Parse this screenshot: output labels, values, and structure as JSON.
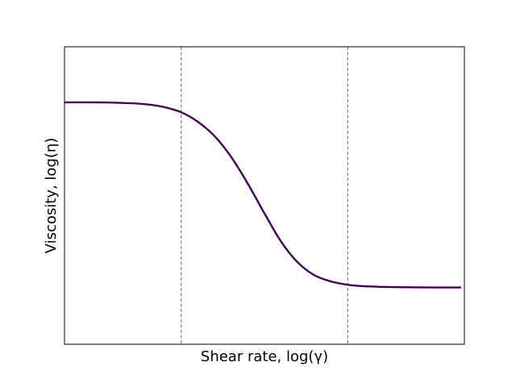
{
  "chart_data": {
    "type": "line",
    "title": "",
    "xlabel": "Shear rate, log(γ)",
    "ylabel": "Viscosity, log(η)",
    "xlim": [
      -3,
      3
    ],
    "ylim": [
      0,
      1
    ],
    "x_ticks": [],
    "y_ticks": [],
    "grid": false,
    "legend": "none",
    "series": [
      {
        "color": "#440154",
        "x": [
          -3.0,
          -2.5,
          -2.0,
          -1.75,
          -1.5,
          -1.25,
          -1.0,
          -0.75,
          -0.5,
          -0.25,
          0.0,
          0.25,
          0.5,
          0.75,
          1.0,
          1.25,
          1.5,
          2.0,
          2.5,
          2.95
        ],
        "y": [
          0.813,
          0.813,
          0.81,
          0.806,
          0.797,
          0.78,
          0.748,
          0.7,
          0.63,
          0.54,
          0.44,
          0.345,
          0.275,
          0.232,
          0.211,
          0.2,
          0.195,
          0.192,
          0.191,
          0.191
        ]
      }
    ],
    "reference_lines": [
      {
        "axis": "x",
        "value": -1.25,
        "style": "dashed",
        "color": "#808080"
      },
      {
        "axis": "x",
        "value": 1.25,
        "style": "dashed",
        "color": "#808080"
      }
    ]
  }
}
